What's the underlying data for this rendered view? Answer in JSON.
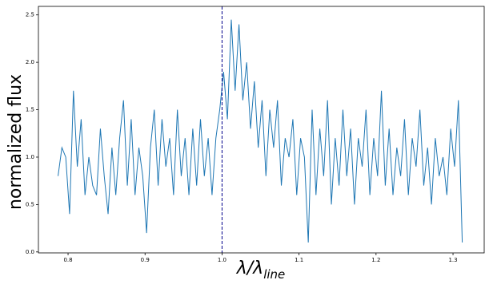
{
  "chart_data": {
    "type": "line",
    "xlabel": {
      "main": "λ/λ",
      "sub": "line"
    },
    "ylabel": "normalized flux",
    "color": "#1f77b4",
    "vline": {
      "value": 1.0,
      "color": "#00008b"
    },
    "x": [
      0.787,
      0.792,
      0.797,
      0.802,
      0.807,
      0.812,
      0.817,
      0.822,
      0.827,
      0.832,
      0.837,
      0.842,
      0.847,
      0.852,
      0.857,
      0.862,
      0.867,
      0.872,
      0.877,
      0.882,
      0.887,
      0.892,
      0.897,
      0.902,
      0.907,
      0.912,
      0.917,
      0.922,
      0.927,
      0.932,
      0.937,
      0.942,
      0.947,
      0.952,
      0.957,
      0.962,
      0.967,
      0.972,
      0.977,
      0.982,
      0.987,
      0.992,
      0.997,
      1.002,
      1.007,
      1.012,
      1.017,
      1.022,
      1.027,
      1.032,
      1.037,
      1.042,
      1.047,
      1.052,
      1.057,
      1.062,
      1.067,
      1.072,
      1.077,
      1.082,
      1.087,
      1.092,
      1.097,
      1.102,
      1.107,
      1.112,
      1.117,
      1.122,
      1.127,
      1.132,
      1.137,
      1.142,
      1.147,
      1.152,
      1.157,
      1.162,
      1.167,
      1.172,
      1.177,
      1.182,
      1.187,
      1.192,
      1.197,
      1.202,
      1.207,
      1.212,
      1.217,
      1.222,
      1.227,
      1.232,
      1.237,
      1.242,
      1.247,
      1.252,
      1.257,
      1.262,
      1.267,
      1.272,
      1.277,
      1.282,
      1.287,
      1.292,
      1.297,
      1.302,
      1.307,
      1.312
    ],
    "values": [
      0.8,
      1.1,
      1.0,
      0.4,
      1.7,
      0.9,
      1.4,
      0.6,
      1.0,
      0.7,
      0.6,
      1.3,
      0.8,
      0.4,
      1.1,
      0.6,
      1.2,
      1.6,
      0.7,
      1.4,
      0.6,
      1.1,
      0.8,
      0.2,
      1.1,
      1.5,
      0.7,
      1.4,
      0.9,
      1.2,
      0.6,
      1.5,
      0.8,
      1.2,
      0.6,
      1.3,
      0.7,
      1.4,
      0.8,
      1.2,
      0.6,
      1.2,
      1.5,
      1.9,
      1.4,
      2.45,
      1.7,
      2.4,
      1.6,
      2.0,
      1.3,
      1.8,
      1.1,
      1.6,
      0.8,
      1.5,
      1.1,
      1.6,
      0.7,
      1.2,
      1.0,
      1.4,
      0.6,
      1.2,
      1.0,
      0.1,
      1.5,
      0.6,
      1.3,
      0.8,
      1.6,
      0.5,
      1.2,
      0.7,
      1.5,
      0.8,
      1.3,
      0.5,
      1.2,
      0.9,
      1.5,
      0.6,
      1.2,
      0.8,
      1.7,
      0.7,
      1.3,
      0.6,
      1.1,
      0.8,
      1.4,
      0.6,
      1.2,
      0.9,
      1.5,
      0.7,
      1.1,
      0.5,
      1.2,
      0.8,
      1.0,
      0.6,
      1.3,
      0.9,
      1.6,
      0.1
    ],
    "xlim": [
      0.7615,
      1.3405
    ],
    "ylim": [
      -0.01,
      2.59
    ],
    "xticks": [
      0.8,
      0.9,
      {
        "value": 1,
        "label": "1.0"
      },
      1.1,
      1.2,
      1.3
    ],
    "yticks": [
      {
        "value": 0,
        "label": "0.0"
      },
      0.5,
      {
        "value": 1,
        "label": "1.0"
      },
      1.5,
      {
        "value": 2,
        "label": "2.0"
      },
      2.5
    ]
  }
}
